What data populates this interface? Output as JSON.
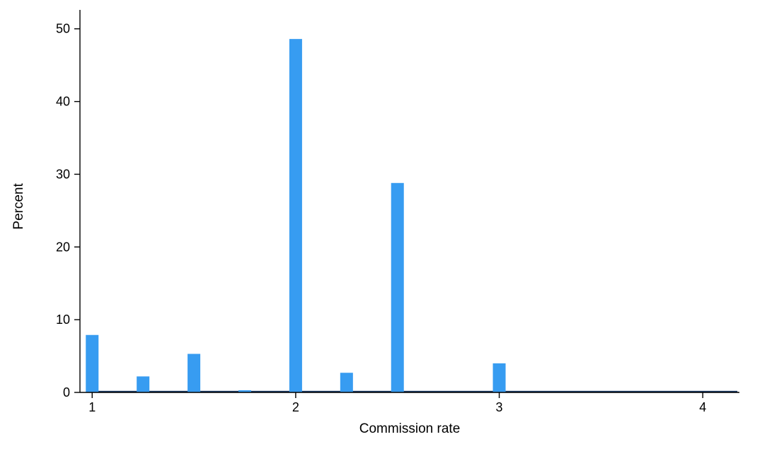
{
  "chart_data": {
    "type": "bar",
    "title": "",
    "xlabel": "Commission rate",
    "ylabel": "Percent",
    "x_ticks": [
      1,
      2,
      3,
      4
    ],
    "y_ticks": [
      0,
      10,
      20,
      30,
      40,
      50
    ],
    "xlim": [
      0.94,
      4.18
    ],
    "ylim": [
      0,
      52.6
    ],
    "grid": false,
    "legend": false,
    "bar_color": "#379CF1",
    "baseline_color": "#15355F",
    "axis_color": "#000000",
    "bars": [
      {
        "x": 1.0,
        "percent": 7.9
      },
      {
        "x": 1.25,
        "percent": 2.2
      },
      {
        "x": 1.5,
        "percent": 5.3
      },
      {
        "x": 1.75,
        "percent": 0.3
      },
      {
        "x": 2.0,
        "percent": 48.6
      },
      {
        "x": 2.25,
        "percent": 2.7
      },
      {
        "x": 2.5,
        "percent": 28.8
      },
      {
        "x": 3.0,
        "percent": 4.0
      }
    ],
    "near_zero_band": {
      "x_start": 0.995,
      "x_end": 4.17,
      "percent": 0.1
    }
  }
}
